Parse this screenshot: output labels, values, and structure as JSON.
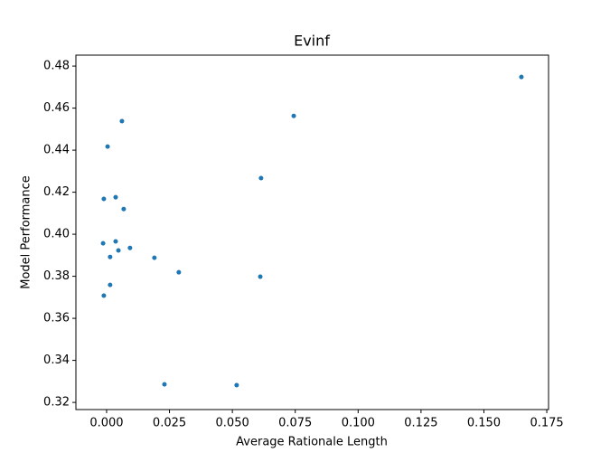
{
  "chart_data": {
    "type": "scatter",
    "title": "Evinf",
    "x_label": "Average Rationale Length",
    "y_label": "Model Performance",
    "color": "#1f77b4",
    "x": [
      0.1649,
      0.0061,
      0.0744,
      0.0004,
      0.0614,
      -0.0011,
      0.0036,
      0.0068,
      -0.0014,
      0.0036,
      0.0047,
      0.0093,
      0.0014,
      0.019,
      0.0287,
      0.0611,
      0.0014,
      -0.0011,
      0.023,
      0.0517
    ],
    "values": [
      0.4748,
      0.4538,
      0.4563,
      0.4417,
      0.4267,
      0.4168,
      0.4176,
      0.412,
      0.3957,
      0.3966,
      0.3923,
      0.3935,
      0.3892,
      0.3888,
      0.3819,
      0.3798,
      0.3759,
      0.3708,
      0.3286,
      0.3282
    ],
    "xlim": [
      -0.0122,
      0.1757
    ],
    "ylim": [
      0.3166,
      0.4852
    ],
    "xticks": [
      {
        "value": 0,
        "label": "0.000"
      },
      {
        "value": 0.025,
        "label": "0.025"
      },
      {
        "value": 0.05,
        "label": "0.050"
      },
      {
        "value": 0.075,
        "label": "0.075"
      },
      {
        "value": 0.1,
        "label": "0.100"
      },
      {
        "value": 0.125,
        "label": "0.125"
      },
      {
        "value": 0.15,
        "label": "0.150"
      },
      {
        "value": 0.175,
        "label": "0.175"
      }
    ],
    "yticks": [
      0.32,
      0.34,
      0.36,
      0.38,
      {
        "value": 0.4,
        "label": "0.40"
      },
      0.42,
      0.44,
      0.46,
      0.48
    ]
  }
}
